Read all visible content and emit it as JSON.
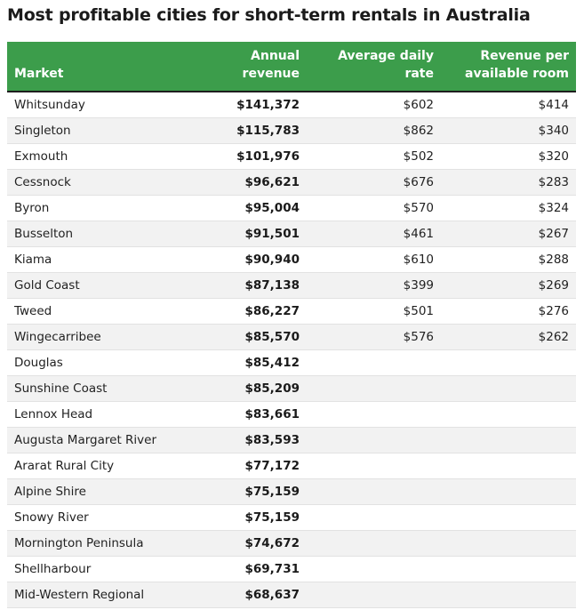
{
  "chart_data": {
    "type": "table",
    "title": "Most profitable cities for short-term rentals in Australia",
    "columns": [
      "Market",
      "Annual revenue",
      "Average daily rate",
      "Revenue per available room"
    ],
    "rows": [
      {
        "market": "Whitsunday",
        "annual_revenue": "$141,372",
        "average_daily_rate": "$602",
        "revpar": "$414"
      },
      {
        "market": "Singleton",
        "annual_revenue": "$115,783",
        "average_daily_rate": "$862",
        "revpar": "$340"
      },
      {
        "market": "Exmouth",
        "annual_revenue": "$101,976",
        "average_daily_rate": "$502",
        "revpar": "$320"
      },
      {
        "market": "Cessnock",
        "annual_revenue": "$96,621",
        "average_daily_rate": "$676",
        "revpar": "$283"
      },
      {
        "market": "Byron",
        "annual_revenue": "$95,004",
        "average_daily_rate": "$570",
        "revpar": "$324"
      },
      {
        "market": "Busselton",
        "annual_revenue": "$91,501",
        "average_daily_rate": "$461",
        "revpar": "$267"
      },
      {
        "market": "Kiama",
        "annual_revenue": "$90,940",
        "average_daily_rate": "$610",
        "revpar": "$288"
      },
      {
        "market": "Gold Coast",
        "annual_revenue": "$87,138",
        "average_daily_rate": "$399",
        "revpar": "$269"
      },
      {
        "market": "Tweed",
        "annual_revenue": "$86,227",
        "average_daily_rate": "$501",
        "revpar": "$276"
      },
      {
        "market": "Wingecarribee",
        "annual_revenue": "$85,570",
        "average_daily_rate": "$576",
        "revpar": "$262"
      },
      {
        "market": "Douglas",
        "annual_revenue": "$85,412",
        "average_daily_rate": "",
        "revpar": ""
      },
      {
        "market": "Sunshine Coast",
        "annual_revenue": "$85,209",
        "average_daily_rate": "",
        "revpar": ""
      },
      {
        "market": "Lennox Head",
        "annual_revenue": "$83,661",
        "average_daily_rate": "",
        "revpar": ""
      },
      {
        "market": "Augusta Margaret River",
        "annual_revenue": "$83,593",
        "average_daily_rate": "",
        "revpar": ""
      },
      {
        "market": "Ararat Rural City",
        "annual_revenue": "$77,172",
        "average_daily_rate": "",
        "revpar": ""
      },
      {
        "market": "Alpine Shire",
        "annual_revenue": "$75,159",
        "average_daily_rate": "",
        "revpar": ""
      },
      {
        "market": "Snowy River",
        "annual_revenue": "$75,159",
        "average_daily_rate": "",
        "revpar": ""
      },
      {
        "market": "Mornington Peninsula",
        "annual_revenue": "$74,672",
        "average_daily_rate": "",
        "revpar": ""
      },
      {
        "market": "Shellharbour",
        "annual_revenue": "$69,731",
        "average_daily_rate": "",
        "revpar": ""
      },
      {
        "market": "Mid-Western Regional",
        "annual_revenue": "$68,637",
        "average_daily_rate": "",
        "revpar": ""
      }
    ]
  },
  "colors": {
    "header_bg": "#3c9d4b",
    "header_text": "#ffffff",
    "row_alt": "#f2f2f2",
    "row_line": "#e2e2e2"
  },
  "header": {
    "revpar_line1": "Revenue per",
    "revpar_line2": "available room"
  }
}
